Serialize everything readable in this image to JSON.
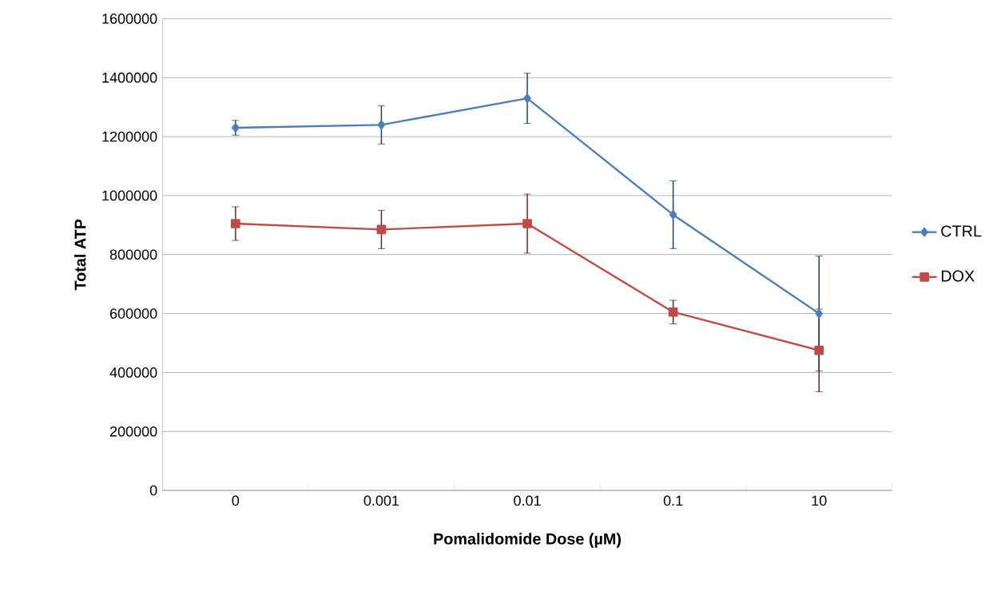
{
  "chart_data": {
    "type": "line",
    "xlabel": "Pomalidomide Dose (µM)",
    "ylabel": "Total ATP",
    "categories": [
      "0",
      "0.001",
      "0.01",
      "0.1",
      "10"
    ],
    "series": [
      {
        "name": "CTRL",
        "color": "#4a7ebb",
        "marker": "diamond",
        "values": [
          1230000,
          1240000,
          1330000,
          935000,
          600000
        ],
        "errors": [
          25000,
          65000,
          85000,
          115000,
          195000
        ]
      },
      {
        "name": "DOX",
        "color": "#be4b48",
        "marker": "square",
        "values": [
          905000,
          885000,
          905000,
          605000,
          475000
        ],
        "errors": [
          57000,
          65000,
          100000,
          40000,
          140000
        ]
      }
    ],
    "ylim": [
      0,
      1600000
    ],
    "yticks": [
      0,
      200000,
      400000,
      600000,
      800000,
      1000000,
      1200000,
      1400000,
      1600000
    ],
    "grid": "y",
    "legend": "right",
    "line_style": "solid"
  }
}
